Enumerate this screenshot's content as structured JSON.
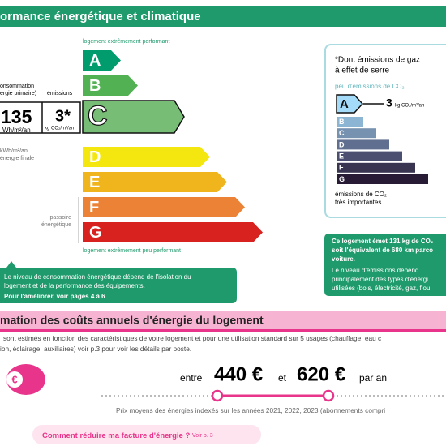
{
  "header": {
    "title": "ormance énergétique et climatique"
  },
  "energy": {
    "top_label": "logement extrêmement performant",
    "bottom_label": "logement extrêmement peu performant",
    "classes": [
      "A",
      "B",
      "C",
      "D",
      "E",
      "F",
      "G"
    ],
    "consumption_label": [
      "onsommation",
      "ergie primaire)"
    ],
    "emissions_label": "émissions",
    "consumption_value": "135",
    "consumption_unit": "Wh/m²/an",
    "emissions_value": "3*",
    "emissions_unit": "kg CO₂/m²/an",
    "final_energy": [
      "kWh/m²/an",
      "énergie finale"
    ],
    "passoire": [
      "passoire",
      "énergétique"
    ],
    "note": [
      "Le niveau de consommation énergétique dépend de l'isolation du",
      "logement et de la performance des équipements.",
      "Pour l'améliorer, voir pages 4 à 6"
    ]
  },
  "ghg": {
    "title": [
      "*Dont émissions de gaz",
      "à effet de serre"
    ],
    "top_label": "peu d'émissions de CO₂",
    "classes": [
      "A",
      "B",
      "C",
      "D",
      "E",
      "F",
      "G"
    ],
    "value": "3",
    "unit": "kg CO₂/m²/an",
    "bottom_label": [
      "émissions de CO₂",
      "très importantes"
    ],
    "note_bold": [
      "Ce logement émet 131 kg de CO₂",
      "soit l'équivalent de 680 km parco",
      "voiture."
    ],
    "note": [
      "Le niveau d'émissions dépend",
      "principalement des types d'énergi",
      "utilisées (bois, électricité, gaz, fiou"
    ]
  },
  "costs": {
    "title": "mation des coûts annuels d'énergie du logement",
    "description": [
      "sont estimés en fonction des caractéristiques de votre logement et pour une utilisation standard sur 5 usages (chauffage, eau c",
      "ion, éclairage, auxiliaires) voir p.3 pour voir les détails par poste."
    ],
    "between": "entre",
    "min": "440 €",
    "and": "et",
    "max": "620 €",
    "per_year": "par an",
    "footnote": "Prix moyens des énergies indexés sur les années 2021, 2022, 2023 (abonnements compri",
    "button": {
      "text": "Comment réduire ma facture d'énergie ?",
      "link": "Voir p. 3"
    },
    "icon": "€"
  }
}
